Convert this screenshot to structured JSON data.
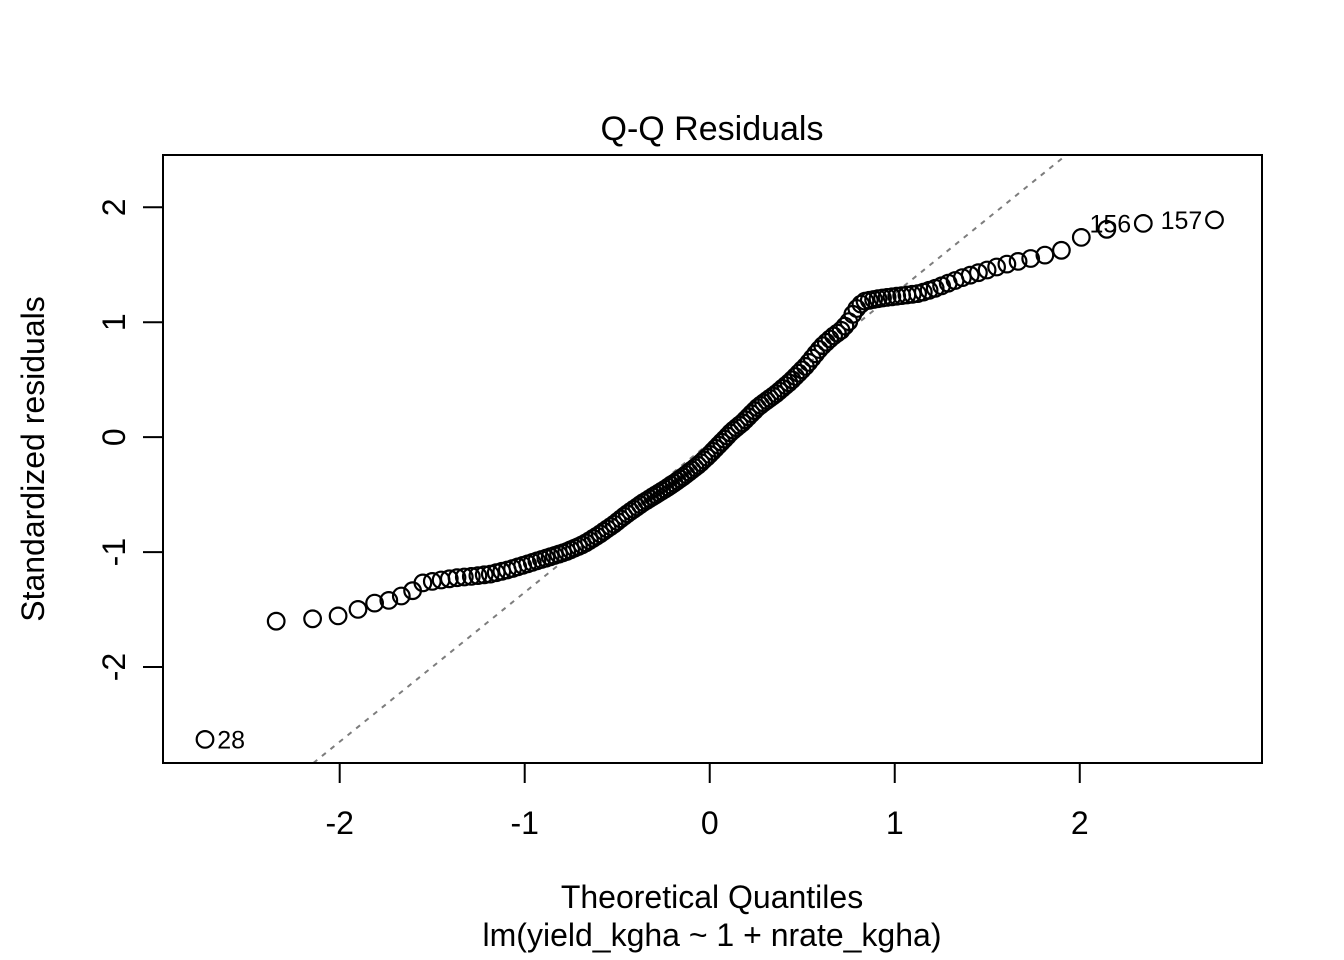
{
  "chart_data": {
    "type": "scatter",
    "subtype": "normal-qq-plot",
    "title": "Q-Q Residuals",
    "xlabel": "Theoretical Quantiles",
    "xlabel_sub": "lm(yield_kgha ~ 1 + nrate_kgha)",
    "ylabel": "Standardized residuals",
    "x_ticks": [
      "-2",
      "-1",
      "0",
      "1",
      "2"
    ],
    "x_tick_values": [
      -2,
      -1,
      0,
      1,
      2
    ],
    "y_ticks": [
      "-2",
      "-1",
      "0",
      "1",
      "2"
    ],
    "y_tick_values": [
      -2,
      -1,
      0,
      1,
      2
    ],
    "xlim": [
      -2.955,
      2.985
    ],
    "ylim": [
      -2.835,
      2.455
    ],
    "grid": false,
    "legend": null,
    "n_points": 157,
    "x_rule": "theoretical quantile x_i = qnorm((i - 0.5) / 157), i = 1..157",
    "curve_nodes": [
      [
        -2.727,
        -2.63
      ],
      [
        -2.343,
        -1.6
      ],
      [
        -2.146,
        -1.58
      ],
      [
        -2.009,
        -1.555
      ],
      [
        -1.903,
        -1.5
      ],
      [
        -1.817,
        -1.445
      ],
      [
        -1.749,
        -1.43
      ],
      [
        -1.691,
        -1.39
      ],
      [
        -1.63,
        -1.37
      ],
      [
        -1.56,
        -1.27
      ],
      [
        -1.48,
        -1.25
      ],
      [
        -1.38,
        -1.225
      ],
      [
        -1.28,
        -1.21
      ],
      [
        -1.18,
        -1.19
      ],
      [
        -1.08,
        -1.15
      ],
      [
        -0.98,
        -1.1
      ],
      [
        -0.88,
        -1.05
      ],
      [
        -0.78,
        -1.0
      ],
      [
        -0.68,
        -0.93
      ],
      [
        -0.6,
        -0.85
      ],
      [
        -0.52,
        -0.76
      ],
      [
        -0.44,
        -0.66
      ],
      [
        -0.36,
        -0.57
      ],
      [
        -0.3,
        -0.51
      ],
      [
        -0.22,
        -0.43
      ],
      [
        -0.14,
        -0.34
      ],
      [
        -0.06,
        -0.24
      ],
      [
        0.0,
        -0.15
      ],
      [
        0.06,
        -0.05
      ],
      [
        0.12,
        0.05
      ],
      [
        0.18,
        0.13
      ],
      [
        0.26,
        0.26
      ],
      [
        0.36,
        0.38
      ],
      [
        0.44,
        0.49
      ],
      [
        0.52,
        0.62
      ],
      [
        0.6,
        0.78
      ],
      [
        0.66,
        0.87
      ],
      [
        0.71,
        0.93
      ],
      [
        0.75,
        1.0
      ],
      [
        0.78,
        1.09
      ],
      [
        0.81,
        1.15
      ],
      [
        0.84,
        1.185
      ],
      [
        0.93,
        1.21
      ],
      [
        1.03,
        1.23
      ],
      [
        1.13,
        1.25
      ],
      [
        1.21,
        1.29
      ],
      [
        1.29,
        1.34
      ],
      [
        1.36,
        1.385
      ],
      [
        1.43,
        1.42
      ],
      [
        1.51,
        1.46
      ],
      [
        1.59,
        1.5
      ],
      [
        1.67,
        1.53
      ],
      [
        1.75,
        1.56
      ],
      [
        1.84,
        1.595
      ],
      [
        1.93,
        1.64
      ],
      [
        2.01,
        1.74
      ],
      [
        2.15,
        1.81
      ],
      [
        2.343,
        1.86
      ],
      [
        2.727,
        1.89
      ]
    ],
    "labeled_points": [
      {
        "label": "28",
        "x": -2.727,
        "y": -2.63,
        "label_side": "right"
      },
      {
        "label": "156",
        "x": 2.343,
        "y": 1.86,
        "label_side": "left"
      },
      {
        "label": "157",
        "x": 2.727,
        "y": 1.89,
        "label_side": "left"
      }
    ],
    "reference_line": {
      "slope": 1.3,
      "intercept": -0.05,
      "style": "dashed",
      "color": "#7d7d7d"
    },
    "point_style": {
      "marker": "open-circle",
      "color": "#000000",
      "radius_px": 8.3,
      "stroke_px": 2.2
    },
    "frame_color": "#000000"
  }
}
